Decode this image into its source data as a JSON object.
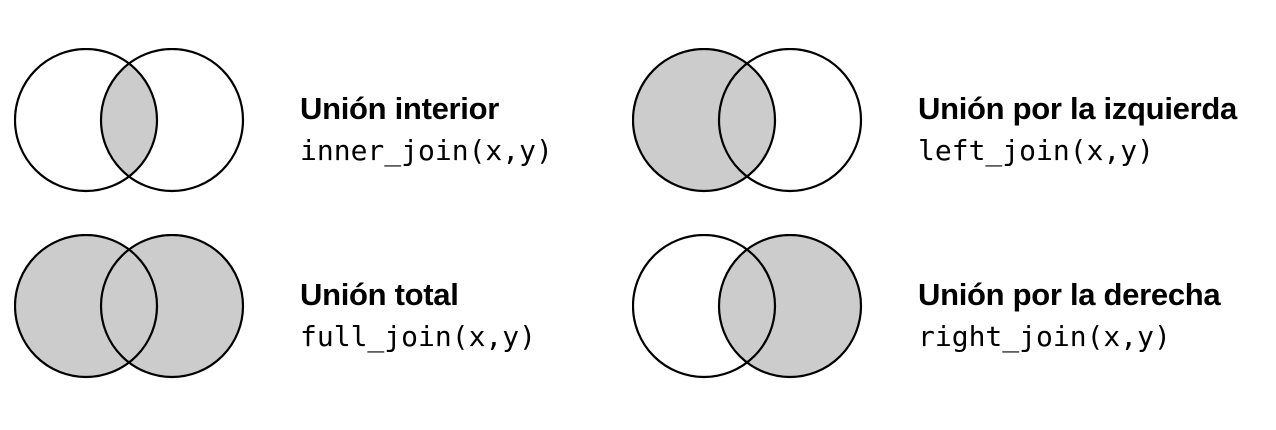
{
  "colors": {
    "fill": "#cccccc",
    "stroke": "#000000",
    "background": "#ffffff"
  },
  "joins": [
    {
      "title": "Unión interior",
      "code": "inner_join(x,y)",
      "shade": "intersection"
    },
    {
      "title": "Unión por la izquierda",
      "code": "left_join(x,y)",
      "shade": "left"
    },
    {
      "title": "Unión total",
      "code": "full_join(x,y)",
      "shade": "both"
    },
    {
      "title": "Unión por la derecha",
      "code": "right_join(x,y)",
      "shade": "right"
    }
  ]
}
